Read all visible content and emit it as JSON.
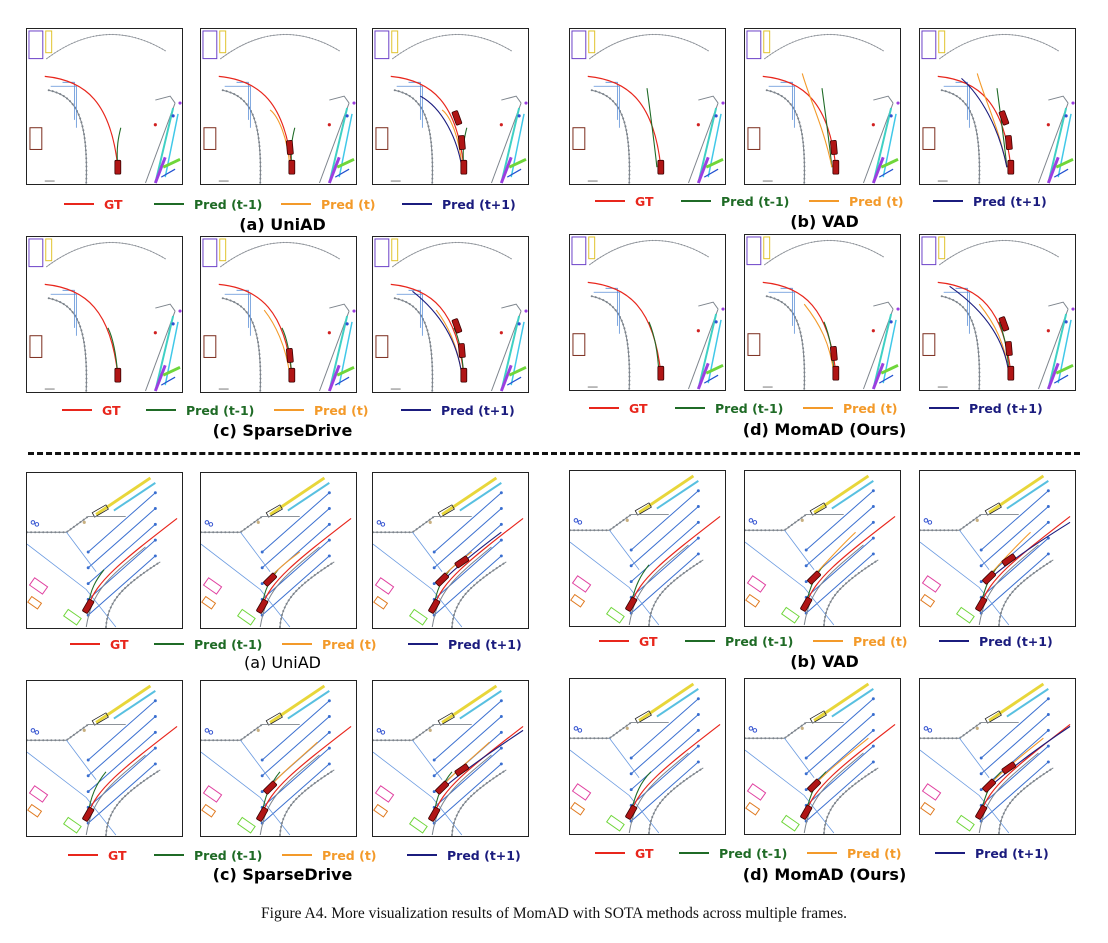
{
  "legend": {
    "gt": {
      "label": "GT",
      "color": "#e8261c"
    },
    "prev": {
      "label": "Pred (t-1)",
      "color": "#1f6b26"
    },
    "cur": {
      "label": "Pred (t)",
      "color": "#f39a2a"
    },
    "next": {
      "label": "Pred (t+1)",
      "color": "#1b1c7e"
    }
  },
  "scenes": [
    {
      "captions": [
        "(a) UniAD",
        "(b) VAD",
        "(c) SparseDrive",
        "(d) MomAD (Ours)"
      ]
    },
    {
      "captions": [
        "(a) UniAD",
        "(b) VAD",
        "(c) SparseDrive",
        "(d) MomAD (Ours)"
      ]
    }
  ],
  "figure_caption": "Figure A4. More visualization results of MomAD with SOTA methods across multiple frames."
}
